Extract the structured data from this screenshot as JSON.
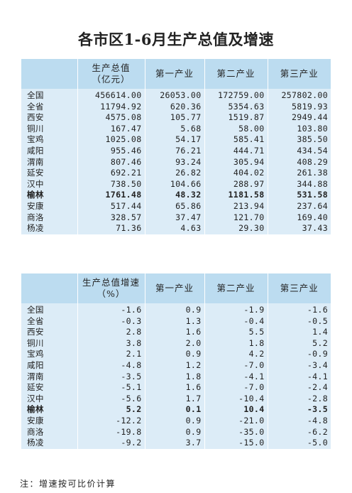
{
  "title": "各市区1-6月生产总值及增速",
  "table1": {
    "headers": [
      "",
      "生产总值\n（亿元）",
      "第一产业",
      "第二产业",
      "第三产业"
    ],
    "rows": [
      [
        "全国",
        "456614.00",
        "26053.00",
        "172759.00",
        "257802.00"
      ],
      [
        "全省",
        "11794.92",
        "620.36",
        "5354.63",
        "5819.93"
      ],
      [
        "西安",
        "4575.08",
        "105.77",
        "1519.87",
        "2949.44"
      ],
      [
        "铜川",
        "167.47",
        "5.68",
        "58.00",
        "103.80"
      ],
      [
        "宝鸡",
        "1025.08",
        "54.17",
        "585.41",
        "385.50"
      ],
      [
        "咸阳",
        "955.46",
        "76.21",
        "444.71",
        "434.54"
      ],
      [
        "渭南",
        "807.46",
        "93.24",
        "305.94",
        "408.29"
      ],
      [
        "延安",
        "692.21",
        "26.82",
        "404.02",
        "261.38"
      ],
      [
        "汉中",
        "738.50",
        "104.66",
        "288.97",
        "344.88"
      ],
      [
        "榆林",
        "1761.48",
        "48.32",
        "1181.58",
        "531.58"
      ],
      [
        "安康",
        "517.44",
        "65.86",
        "213.94",
        "237.64"
      ],
      [
        "商洛",
        "328.57",
        "37.47",
        "121.70",
        "169.40"
      ],
      [
        "杨凌",
        "71.36",
        "4.63",
        "29.30",
        "37.43"
      ]
    ],
    "bold_row": 9
  },
  "table2": {
    "headers": [
      "",
      "生产总值增速\n（%）",
      "第一产业",
      "第二产业",
      "第三产业"
    ],
    "rows": [
      [
        "全国",
        "-1.6",
        "0.9",
        "-1.9",
        "-1.6"
      ],
      [
        "全省",
        "-0.3",
        "1.3",
        "-0.4",
        "-0.5"
      ],
      [
        "西安",
        "2.8",
        "1.6",
        "5.5",
        "1.4"
      ],
      [
        "铜川",
        "3.8",
        "2.0",
        "1.8",
        "5.2"
      ],
      [
        "宝鸡",
        "2.1",
        "0.9",
        "4.2",
        "-0.9"
      ],
      [
        "咸阳",
        "-4.8",
        "1.2",
        "-7.0",
        "-3.4"
      ],
      [
        "渭南",
        "-3.5",
        "1.8",
        "-4.1",
        "-4.1"
      ],
      [
        "延安",
        "-5.1",
        "1.6",
        "-7.0",
        "-2.4"
      ],
      [
        "汉中",
        "-5.6",
        "1.7",
        "-10.4",
        "-2.8"
      ],
      [
        "榆林",
        "5.2",
        "0.1",
        "10.4",
        "-3.5"
      ],
      [
        "安康",
        "-12.2",
        "0.9",
        "-21.0",
        "-4.8"
      ],
      [
        "商洛",
        "-19.8",
        "0.9",
        "-35.0",
        "-6.2"
      ],
      [
        "杨凌",
        "-9.2",
        "3.7",
        "-15.0",
        "-5.0"
      ]
    ],
    "bold_row": 9
  },
  "note": "注：增速按可比价计算",
  "colors": {
    "header_bg": "#bcdcf0",
    "body_bg": "#dcecf7"
  }
}
